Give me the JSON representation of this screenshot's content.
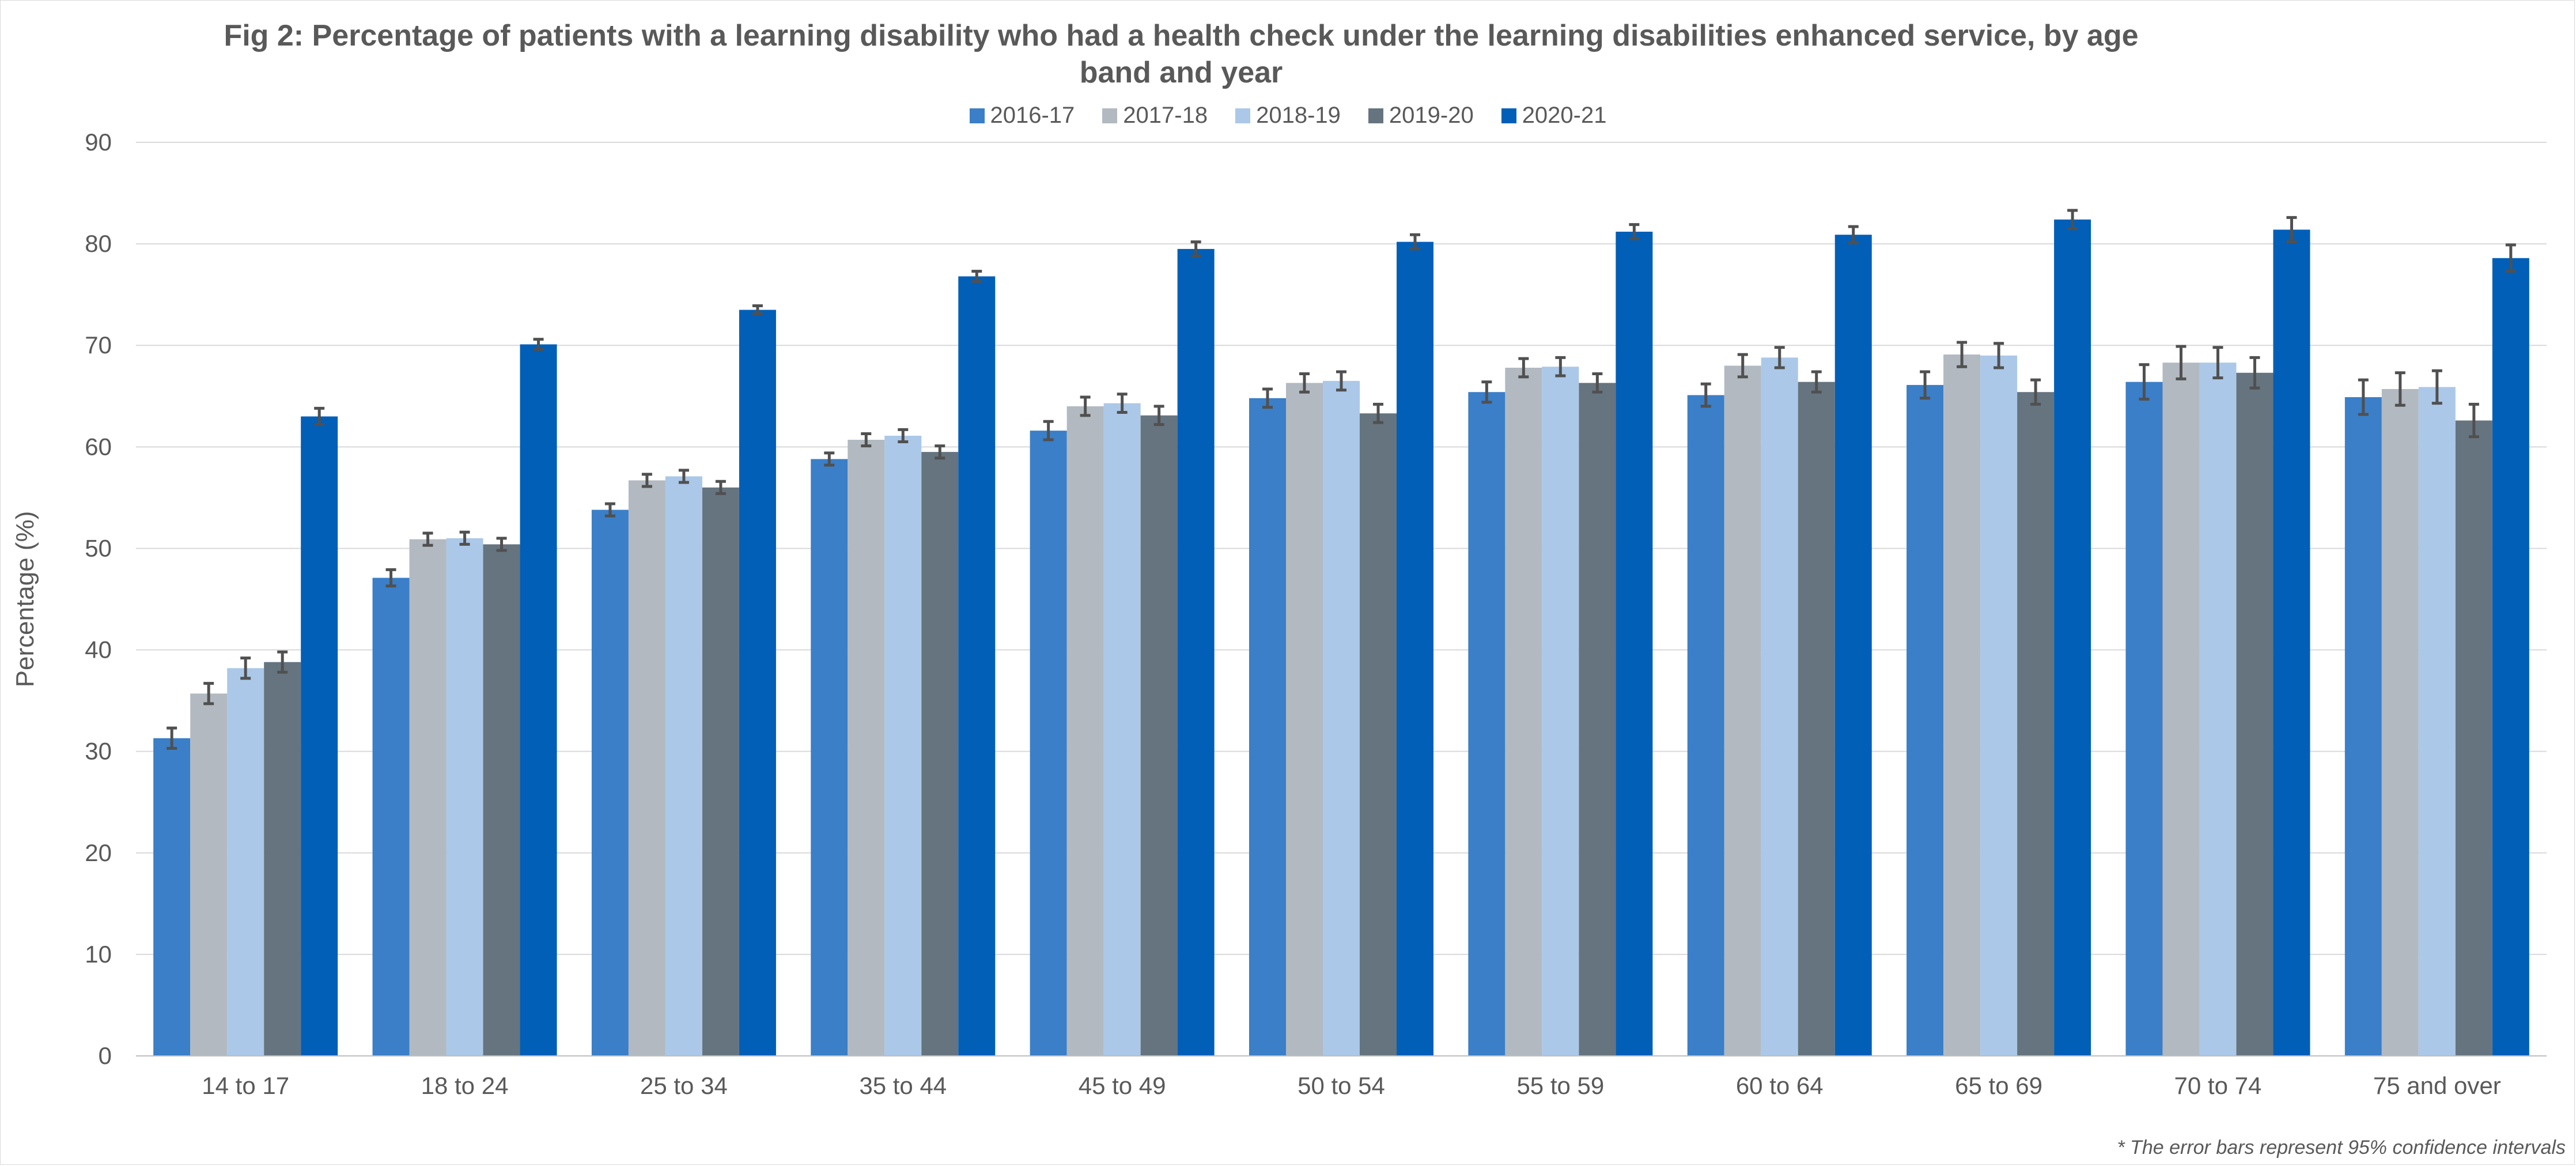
{
  "chart_data": {
    "type": "bar",
    "title": "Fig 2: Percentage of patients with a learning disability who had a health check under the learning disabilities enhanced service, by age band and year",
    "xlabel": "",
    "ylabel": "Percentage (%)",
    "ylim": [
      0,
      90
    ],
    "yticks": [
      0,
      10,
      20,
      30,
      40,
      50,
      60,
      70,
      80,
      90
    ],
    "grid": true,
    "legend_position": "top",
    "categories": [
      "14 to 17",
      "18 to 24",
      "25 to 34",
      "35 to 44",
      "45 to 49",
      "50 to 54",
      "55 to 59",
      "60 to 64",
      "65 to 69",
      "70 to 74",
      "75 and over"
    ],
    "series": [
      {
        "name": "2016-17",
        "color": "#3a7fc8",
        "values": [
          31.3,
          47.1,
          53.8,
          58.8,
          61.6,
          64.8,
          65.4,
          65.1,
          66.1,
          66.4,
          64.9
        ],
        "error": [
          1.0,
          0.8,
          0.6,
          0.6,
          0.9,
          0.9,
          1.0,
          1.1,
          1.3,
          1.7,
          1.7
        ]
      },
      {
        "name": "2017-18",
        "color": "#b2b9c1",
        "values": [
          35.7,
          50.9,
          56.7,
          60.7,
          64.0,
          66.3,
          67.8,
          68.0,
          69.1,
          68.3,
          65.7
        ],
        "error": [
          1.0,
          0.6,
          0.6,
          0.6,
          0.9,
          0.9,
          0.9,
          1.1,
          1.2,
          1.6,
          1.6
        ]
      },
      {
        "name": "2018-19",
        "color": "#abc8e8",
        "values": [
          38.2,
          51.0,
          57.1,
          61.1,
          64.3,
          66.5,
          67.9,
          68.8,
          69.0,
          68.3,
          65.9
        ],
        "error": [
          1.0,
          0.6,
          0.6,
          0.6,
          0.9,
          0.9,
          0.9,
          1.0,
          1.2,
          1.5,
          1.6
        ]
      },
      {
        "name": "2019-20",
        "color": "#66747f",
        "values": [
          38.8,
          50.4,
          56.0,
          59.5,
          63.1,
          63.3,
          66.3,
          66.4,
          65.4,
          67.3,
          62.6
        ],
        "error": [
          1.0,
          0.6,
          0.6,
          0.6,
          0.9,
          0.9,
          0.9,
          1.0,
          1.2,
          1.5,
          1.6
        ]
      },
      {
        "name": "2020-21",
        "color": "#015fb8",
        "values": [
          63.0,
          70.1,
          73.5,
          76.8,
          79.5,
          80.2,
          81.2,
          80.9,
          82.4,
          81.4,
          78.6
        ],
        "error": [
          0.8,
          0.5,
          0.4,
          0.5,
          0.7,
          0.7,
          0.7,
          0.8,
          0.9,
          1.2,
          1.3
        ]
      }
    ],
    "error_bar_color": "#505050",
    "footnote": "* The error bars represent 95% confidence intervals"
  }
}
